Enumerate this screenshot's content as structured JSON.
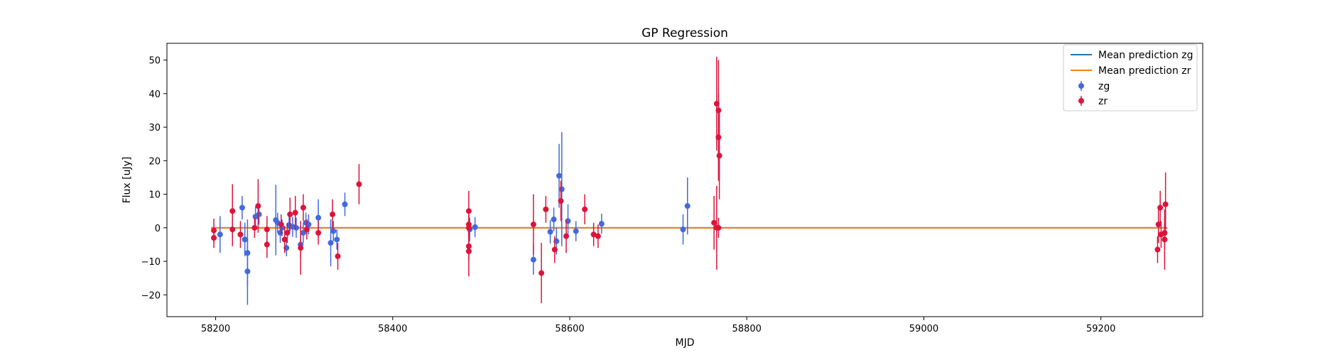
{
  "chart_data": {
    "type": "scatter",
    "title": "GP Regression",
    "xlabel": "MJD",
    "ylabel": "Flux [uJy]",
    "xlim": [
      58145,
      59315
    ],
    "ylim": [
      -26.5,
      55
    ],
    "xticks": [
      58200,
      58400,
      58600,
      58800,
      59000,
      59200
    ],
    "yticks": [
      -20,
      -10,
      0,
      10,
      20,
      30,
      40,
      50
    ],
    "grid": false,
    "legend_position": "top-right",
    "colors": {
      "zg": "#4169e1",
      "zr": "#dc143c",
      "mean_zg": "#1f77b4",
      "mean_zr": "#ff7f0e"
    },
    "series": [
      {
        "name": "Mean prediction zg",
        "kind": "line",
        "x": [
          58195,
          59275
        ],
        "y": [
          0,
          0
        ]
      },
      {
        "name": "Mean prediction zr",
        "kind": "line",
        "x": [
          58195,
          59275
        ],
        "y": [
          0,
          0
        ]
      },
      {
        "name": "zg",
        "kind": "errorbar",
        "points": [
          [
            58205,
            -2,
            5.5
          ],
          [
            58230,
            6,
            3.5
          ],
          [
            58233,
            -3.5,
            5
          ],
          [
            58236,
            -7.5,
            10
          ],
          [
            58236,
            -13,
            10
          ],
          [
            58245,
            3.3,
            3
          ],
          [
            58249,
            4,
            3
          ],
          [
            58268,
            2.3,
            10.5
          ],
          [
            58270,
            1.5,
            3
          ],
          [
            58273,
            -1.5,
            3
          ],
          [
            58275,
            0,
            2.5
          ],
          [
            58280,
            -6,
            2.5
          ],
          [
            58283,
            0.8,
            2.5
          ],
          [
            58287,
            0.3,
            3
          ],
          [
            58291,
            0,
            3
          ],
          [
            58296,
            -5,
            4
          ],
          [
            58299,
            -1.5,
            3
          ],
          [
            58302,
            1.5,
            3
          ],
          [
            58305,
            1,
            3
          ],
          [
            58316,
            3,
            5.5
          ],
          [
            58330,
            -4.5,
            7
          ],
          [
            58333,
            -1,
            3
          ],
          [
            58337,
            -3.5,
            3
          ],
          [
            58346,
            7,
            3.5
          ],
          [
            58487,
            -0.5,
            3.5
          ],
          [
            58493,
            0.2,
            3
          ],
          [
            58559,
            -9.5,
            4.5
          ],
          [
            58578,
            -1.2,
            3.5
          ],
          [
            58582,
            2.5,
            3.5
          ],
          [
            58585,
            -4,
            4
          ],
          [
            58588,
            15.5,
            9.5
          ],
          [
            58591,
            11.5,
            17
          ],
          [
            58598,
            2,
            5
          ],
          [
            58607,
            -1,
            3
          ],
          [
            58636,
            1.2,
            3
          ],
          [
            58728,
            -0.5,
            4.5
          ],
          [
            58733,
            6.5,
            8.5
          ]
        ]
      },
      {
        "name": "zr",
        "kind": "errorbar",
        "points": [
          [
            58198,
            -0.8,
            3.5
          ],
          [
            58198,
            -3,
            3
          ],
          [
            58219,
            -0.5,
            5
          ],
          [
            58219,
            5,
            8
          ],
          [
            58228,
            -2,
            4
          ],
          [
            58244,
            0,
            3
          ],
          [
            58248,
            6.5,
            8
          ],
          [
            58258,
            -0.5,
            4
          ],
          [
            58258,
            -5,
            4
          ],
          [
            58274,
            1,
            3
          ],
          [
            58278,
            -3.5,
            4
          ],
          [
            58281,
            -1.5,
            3
          ],
          [
            58284,
            4,
            5
          ],
          [
            58290,
            4.5,
            5
          ],
          [
            58296,
            -6,
            8
          ],
          [
            58299,
            6,
            4
          ],
          [
            58303,
            -0.5,
            3
          ],
          [
            58316,
            -1.5,
            3.5
          ],
          [
            58332,
            4,
            4.5
          ],
          [
            58338,
            -8.5,
            4
          ],
          [
            58362,
            13,
            6
          ],
          [
            58486,
            5,
            6
          ],
          [
            58486,
            1,
            3
          ],
          [
            58486,
            0,
            2.5
          ],
          [
            58486,
            -5.5,
            4
          ],
          [
            58486,
            -7,
            7.5
          ],
          [
            58559,
            1,
            9
          ],
          [
            58568,
            -13.5,
            9
          ],
          [
            58573,
            5.5,
            4
          ],
          [
            58583,
            -6.5,
            4
          ],
          [
            58590,
            8,
            6
          ],
          [
            58596,
            -2.5,
            5
          ],
          [
            58617,
            5.5,
            4.5
          ],
          [
            58627,
            -2,
            3.5
          ],
          [
            58632,
            -2.5,
            3.5
          ],
          [
            58763,
            1.5,
            8
          ],
          [
            58766,
            0,
            12.5
          ],
          [
            58766,
            37,
            14
          ],
          [
            58768,
            35,
            15
          ],
          [
            58768,
            27,
            13
          ],
          [
            58769,
            21.5,
            13
          ],
          [
            58768,
            0,
            3
          ],
          [
            59264,
            -6.5,
            4
          ],
          [
            59265,
            1,
            5.5
          ],
          [
            59267,
            6,
            5
          ],
          [
            59268,
            -2,
            4
          ],
          [
            59272,
            -1.5,
            4.5
          ],
          [
            59272,
            -3.5,
            9
          ],
          [
            59273,
            7,
            9.5
          ]
        ]
      }
    ]
  }
}
